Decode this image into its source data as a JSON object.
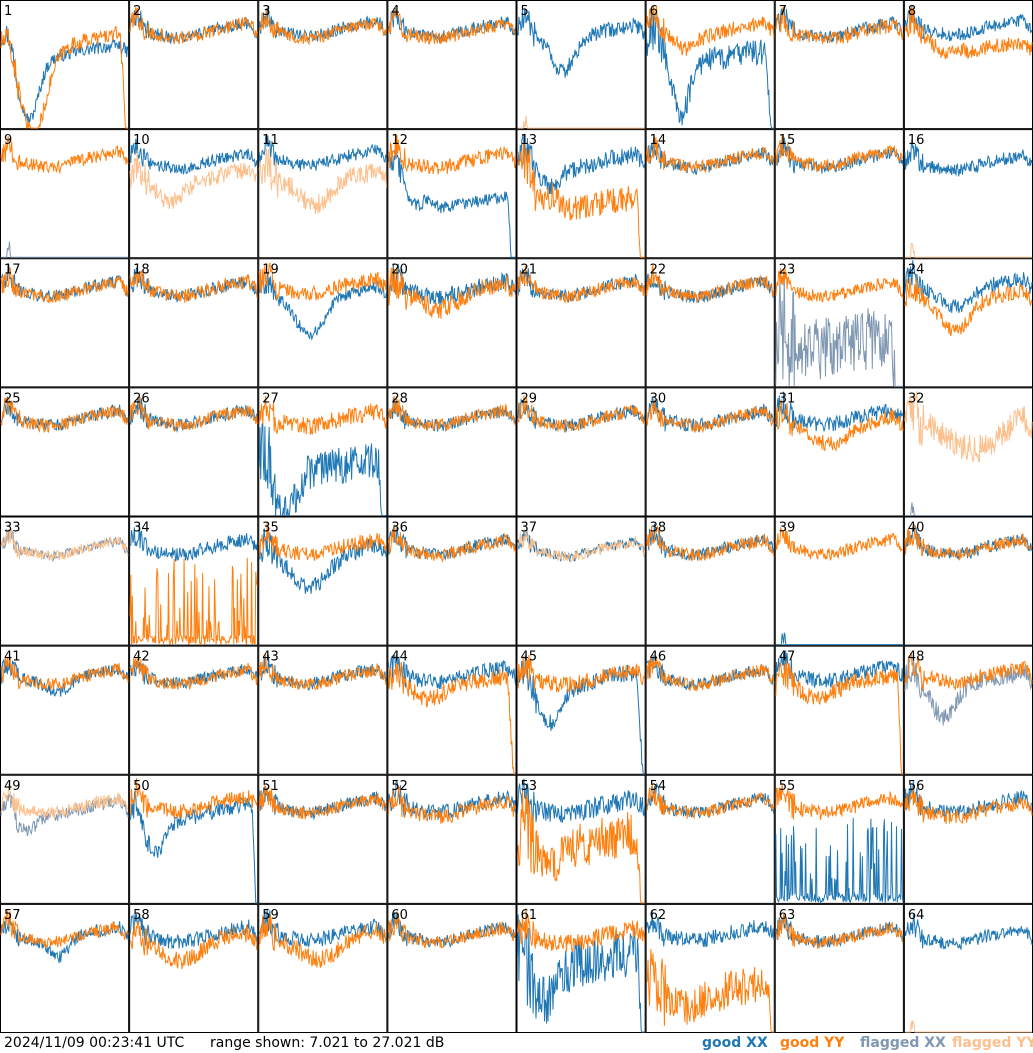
{
  "chart_data": {
    "type": "line",
    "grid": {
      "rows": 8,
      "cols": 8
    },
    "ylim": [
      7.021,
      27.021
    ],
    "legend_position": "bottom-right",
    "colors": {
      "good_xx": "#1f77b4",
      "good_yy": "#ff7f0e",
      "flagged_xx": "#7f97b2",
      "flagged_yy": "#fcc08c"
    },
    "panels": [
      {
        "label": "1",
        "xx": {
          "base": 21.4,
          "dip": 12.5,
          "pos": 0.22,
          "width": 0.12,
          "tail": 14,
          "noise": 1.0
        },
        "yy": {
          "base": 20.6,
          "dip": 14,
          "pos": 0.25,
          "width": 0.14,
          "drop": 0.94,
          "noise": 1.2
        }
      },
      {
        "label": "2",
        "xx": {
          "base": 22.3,
          "noise": 1.0
        },
        "yy": {
          "base": 22.3,
          "noise": 1.1
        }
      },
      {
        "label": "3",
        "xx": {
          "base": 22.6,
          "noise": 1.0
        },
        "yy": {
          "base": 22.3,
          "noise": 1.0
        }
      },
      {
        "label": "4",
        "xx": {
          "base": 22.5,
          "noise": 1.0
        },
        "yy": {
          "base": 22.2,
          "noise": 1.0
        }
      },
      {
        "label": "5",
        "xx": {
          "base": 22.0,
          "dip": 5,
          "pos": 0.35,
          "width": 0.12,
          "noise": 1.2
        },
        "yy": {
          "flagged": true,
          "spike": true,
          "noise": 0
        }
      },
      {
        "label": "6",
        "xx": {
          "base": 20.9,
          "dip": 11,
          "pos": 0.27,
          "width": 0.1,
          "tail": 12,
          "drop": 0.94,
          "noise": 2.0
        },
        "yy": {
          "base": 22.4,
          "dip": 2,
          "pos": 0.3,
          "width": 0.1,
          "noise": 1.2
        }
      },
      {
        "label": "7",
        "xx": {
          "base": 22.4,
          "noise": 1.0
        },
        "yy": {
          "base": 22.0,
          "noise": 1.2
        }
      },
      {
        "label": "8",
        "xx": {
          "base": 22.8,
          "noise": 1.0
        },
        "yy": {
          "base": 22.0,
          "dip": 2,
          "pos": 0.3,
          "width": 0.1,
          "tail": 14,
          "noise": 1.2
        }
      },
      {
        "label": "9",
        "xx": {
          "flagged": true,
          "spike": true,
          "noise": 0
        },
        "yy": {
          "base": 22.3,
          "noise": 1.0
        }
      },
      {
        "label": "10",
        "xx": {
          "base": 22.1,
          "noise": 1.0
        },
        "yy": {
          "flagged": true,
          "base": 19.5,
          "dip": 3,
          "pos": 0.3,
          "width": 0.12,
          "noise": 1.4
        }
      },
      {
        "label": "11",
        "xx": {
          "base": 22.6,
          "noise": 1.0
        },
        "yy": {
          "flagged": true,
          "base": 19.3,
          "dip": 3,
          "pos": 0.45,
          "width": 0.15,
          "noise": 1.6
        }
      },
      {
        "label": "12",
        "xx": {
          "base": 21.0,
          "dip": 5,
          "pos": 0.2,
          "width": 0.1,
          "tail": 3,
          "drop": 0.94,
          "noise": 1.0
        },
        "yy": {
          "base": 22.2,
          "noise": 1.2
        }
      },
      {
        "label": "13",
        "xx": {
          "base": 22.0,
          "dip": 3,
          "pos": 0.25,
          "width": 0.1,
          "noise": 1.4
        },
        "yy": {
          "base": 21.3,
          "dip": 5,
          "pos": 0.18,
          "width": 0.08,
          "tail": 2,
          "drop": 0.94,
          "noise": 2.0
        }
      },
      {
        "label": "14",
        "xx": {
          "base": 22.1,
          "noise": 1.0
        },
        "yy": {
          "base": 22.3,
          "noise": 1.0
        }
      },
      {
        "label": "15",
        "xx": {
          "base": 22.2,
          "noise": 1.0
        },
        "yy": {
          "base": 22.5,
          "noise": 1.0
        }
      },
      {
        "label": "16",
        "xx": {
          "base": 21.8,
          "noise": 1.0
        },
        "yy": {
          "flagged": true,
          "spike": true,
          "noise": 0
        }
      },
      {
        "label": "17",
        "xx": {
          "base": 22.3,
          "noise": 1.0
        },
        "yy": {
          "base": 22.2,
          "noise": 1.0
        }
      },
      {
        "label": "18",
        "xx": {
          "base": 22.3,
          "noise": 1.0
        },
        "yy": {
          "base": 22.3,
          "noise": 1.1
        }
      },
      {
        "label": "19",
        "xx": {
          "base": 21.3,
          "dip": 5,
          "pos": 0.4,
          "width": 0.15,
          "noise": 1.0
        },
        "yy": {
          "base": 22.7,
          "noise": 1.2
        }
      },
      {
        "label": "20",
        "xx": {
          "base": 22.2,
          "noise": 1.4
        },
        "yy": {
          "base": 21.7,
          "dip": 1.5,
          "pos": 0.4,
          "width": 0.15,
          "noise": 1.6
        }
      },
      {
        "label": "21",
        "xx": {
          "base": 22.4,
          "noise": 1.0
        },
        "yy": {
          "base": 22.3,
          "noise": 1.0
        }
      },
      {
        "label": "22",
        "xx": {
          "base": 22.2,
          "noise": 1.0
        },
        "yy": {
          "base": 22.4,
          "noise": 1.0
        }
      },
      {
        "label": "23",
        "xx": {
          "flagged": true,
          "base": 14,
          "noise": 5,
          "drop": 0.9
        },
        "yy": {
          "base": 22.2,
          "noise": 1.0
        }
      },
      {
        "label": "24",
        "xx": {
          "base": 22.7,
          "dip": 2,
          "pos": 0.4,
          "width": 0.15,
          "noise": 1.2
        },
        "yy": {
          "base": 20.8,
          "dip": 4,
          "pos": 0.4,
          "width": 0.15,
          "noise": 1.2
        }
      },
      {
        "label": "25",
        "xx": {
          "base": 22.3,
          "noise": 1.0
        },
        "yy": {
          "base": 22.2,
          "noise": 1.0
        }
      },
      {
        "label": "26",
        "xx": {
          "base": 22.4,
          "noise": 1.0
        },
        "yy": {
          "base": 22.3,
          "noise": 1.0
        }
      },
      {
        "label": "27",
        "xx": {
          "base": 17.4,
          "dip": 10,
          "pos": 0.2,
          "width": 0.12,
          "tail": 9,
          "drop": 0.94,
          "noise": 3.0
        },
        "yy": {
          "base": 22.2,
          "noise": 1.4
        }
      },
      {
        "label": "28",
        "xx": {
          "base": 22.3,
          "noise": 1.0
        },
        "yy": {
          "base": 22.3,
          "noise": 1.0
        }
      },
      {
        "label": "29",
        "xx": {
          "base": 22.3,
          "noise": 1.0
        },
        "yy": {
          "base": 22.2,
          "noise": 1.0
        }
      },
      {
        "label": "30",
        "xx": {
          "base": 22.3,
          "noise": 1.1
        },
        "yy": {
          "base": 22.2,
          "noise": 1.0
        }
      },
      {
        "label": "31",
        "xx": {
          "base": 22.4,
          "noise": 1.2
        },
        "yy": {
          "base": 21.3,
          "dip": 2,
          "pos": 0.45,
          "width": 0.2,
          "noise": 1.2
        }
      },
      {
        "label": "32",
        "xx": {
          "flagged": true,
          "spike": true,
          "noise": 0
        },
        "yy": {
          "flagged": true,
          "base": 21.8,
          "dip": 4,
          "pos": 0.6,
          "width": 0.25,
          "noise": 2.2
        }
      },
      {
        "label": "33",
        "xx": {
          "flagged": true,
          "base": 22.1,
          "noise": 0.8
        },
        "yy": {
          "flagged": true,
          "base": 22.1,
          "noise": 0.8
        }
      },
      {
        "label": "34",
        "xx": {
          "base": 22.3,
          "noise": 1.1
        },
        "yy": {
          "base": 9,
          "noise": 4,
          "spike": true
        }
      },
      {
        "label": "35",
        "xx": {
          "base": 21.3,
          "dip": 4,
          "pos": 0.4,
          "width": 0.2,
          "noise": 1.4
        },
        "yy": {
          "base": 22.3,
          "noise": 1.2
        }
      },
      {
        "label": "36",
        "xx": {
          "base": 22.3,
          "noise": 1.0
        },
        "yy": {
          "base": 22.2,
          "noise": 1.0
        }
      },
      {
        "label": "37",
        "xx": {
          "base": 22.0,
          "noise": 0.8
        },
        "yy": {
          "flagged": true,
          "base": 21.9,
          "noise": 0.9
        }
      },
      {
        "label": "38",
        "xx": {
          "base": 22.3,
          "noise": 1.0
        },
        "yy": {
          "base": 22.2,
          "noise": 1.0
        }
      },
      {
        "label": "39",
        "xx": {
          "flagged": false,
          "spike": true,
          "noise": 0
        },
        "yy": {
          "base": 22.3,
          "noise": 1.0
        }
      },
      {
        "label": "40",
        "xx": {
          "base": 22.3,
          "noise": 1.0
        },
        "yy": {
          "base": 22.3,
          "noise": 1.0
        }
      },
      {
        "label": "41",
        "xx": {
          "base": 22.3,
          "dip": 1.5,
          "pos": 0.45,
          "width": 0.1,
          "noise": 1.0
        },
        "yy": {
          "base": 22.2,
          "noise": 1.0
        }
      },
      {
        "label": "42",
        "xx": {
          "base": 22.3,
          "noise": 1.0
        },
        "yy": {
          "base": 22.2,
          "noise": 1.0
        }
      },
      {
        "label": "43",
        "xx": {
          "base": 22.3,
          "noise": 1.0
        },
        "yy": {
          "base": 22.1,
          "noise": 1.0
        }
      },
      {
        "label": "44",
        "xx": {
          "base": 22.5,
          "noise": 1.2
        },
        "yy": {
          "base": 21.2,
          "dip": 1.5,
          "pos": 0.3,
          "width": 0.12,
          "drop": 0.94,
          "noise": 1.4
        }
      },
      {
        "label": "45",
        "xx": {
          "base": 21.8,
          "dip": 6,
          "pos": 0.25,
          "width": 0.12,
          "drop": 0.94,
          "noise": 1.4
        },
        "yy": {
          "base": 22.1,
          "noise": 1.3
        }
      },
      {
        "label": "46",
        "xx": {
          "base": 22.2,
          "noise": 1.0
        },
        "yy": {
          "base": 22.1,
          "noise": 1.0
        }
      },
      {
        "label": "47",
        "xx": {
          "base": 22.7,
          "noise": 1.2
        },
        "yy": {
          "base": 21.3,
          "dip": 1.5,
          "pos": 0.3,
          "width": 0.12,
          "drop": 0.96,
          "noise": 1.4
        }
      },
      {
        "label": "48",
        "xx": {
          "flagged": true,
          "base": 21.8,
          "dip": 5,
          "pos": 0.3,
          "width": 0.12,
          "noise": 1.4
        },
        "yy": {
          "base": 22.5,
          "noise": 1.2
        }
      },
      {
        "label": "49",
        "xx": {
          "flagged": true,
          "base": 21.8,
          "dip": 3,
          "pos": 0.2,
          "width": 0.1,
          "noise": 1.0
        },
        "yy": {
          "flagged": true,
          "base": 22.2,
          "noise": 1.0
        }
      },
      {
        "label": "50",
        "xx": {
          "base": 21.3,
          "dip": 6,
          "pos": 0.2,
          "width": 0.1,
          "drop": 0.96,
          "noise": 1.2
        },
        "yy": {
          "base": 22.5,
          "noise": 1.2
        }
      },
      {
        "label": "51",
        "xx": {
          "base": 22.3,
          "noise": 1.0
        },
        "yy": {
          "base": 22.2,
          "noise": 1.0
        }
      },
      {
        "label": "52",
        "xx": {
          "base": 22.3,
          "noise": 1.2
        },
        "yy": {
          "base": 21.7,
          "noise": 1.2
        }
      },
      {
        "label": "53",
        "xx": {
          "base": 22.1,
          "noise": 1.6
        },
        "yy": {
          "base": 16.8,
          "dip": 3,
          "pos": 0.25,
          "width": 0.1,
          "drop": 0.94,
          "noise": 3.5
        }
      },
      {
        "label": "54",
        "xx": {
          "base": 22.3,
          "noise": 1.0
        },
        "yy": {
          "base": 22.2,
          "noise": 1.0
        }
      },
      {
        "label": "55",
        "xx": {
          "base": 9,
          "noise": 6,
          "spike": true
        },
        "yy": {
          "base": 22.3,
          "noise": 1.2
        }
      },
      {
        "label": "56",
        "xx": {
          "base": 22.3,
          "noise": 1.2
        },
        "yy": {
          "base": 21.6,
          "noise": 1.2
        }
      },
      {
        "label": "57",
        "xx": {
          "base": 22.3,
          "dip": 2.5,
          "pos": 0.45,
          "width": 0.1,
          "noise": 1.0
        },
        "yy": {
          "base": 22.2,
          "noise": 1.0
        }
      },
      {
        "label": "58",
        "xx": {
          "base": 22.3,
          "noise": 1.2
        },
        "yy": {
          "base": 21.3,
          "dip": 2,
          "pos": 0.4,
          "width": 0.2,
          "noise": 1.4
        }
      },
      {
        "label": "59",
        "xx": {
          "base": 22.5,
          "noise": 1.2
        },
        "yy": {
          "base": 21.8,
          "dip": 2.5,
          "pos": 0.5,
          "width": 0.2,
          "noise": 1.4
        }
      },
      {
        "label": "60",
        "xx": {
          "base": 22.3,
          "noise": 1.0
        },
        "yy": {
          "base": 22.2,
          "noise": 1.0
        }
      },
      {
        "label": "61",
        "xx": {
          "base": 18.5,
          "dip": 6,
          "pos": 0.2,
          "width": 0.12,
          "drop": 0.94,
          "noise": 4.0
        },
        "yy": {
          "base": 22.0,
          "noise": 1.4
        }
      },
      {
        "label": "62",
        "xx": {
          "base": 22.5,
          "noise": 1.2
        },
        "yy": {
          "base": 13.5,
          "dip": 2,
          "pos": 0.3,
          "width": 0.1,
          "drop": 0.96,
          "noise": 3.0
        }
      },
      {
        "label": "63",
        "xx": {
          "base": 22.3,
          "noise": 1.0
        },
        "yy": {
          "base": 22.2,
          "noise": 1.0
        }
      },
      {
        "label": "64",
        "xx": {
          "base": 22.0,
          "noise": 1.0
        },
        "yy": {
          "flagged": true,
          "spike": true,
          "noise": 0
        }
      }
    ]
  },
  "footer": {
    "timestamp": "2024/11/09 00:23:41 UTC",
    "range": "range shown: 7.021 to 27.021 dB",
    "legend": {
      "good_xx": "good XX",
      "good_yy": "good YY",
      "flagged_xx": "flagged XX",
      "flagged_yy": "flagged YY"
    }
  }
}
